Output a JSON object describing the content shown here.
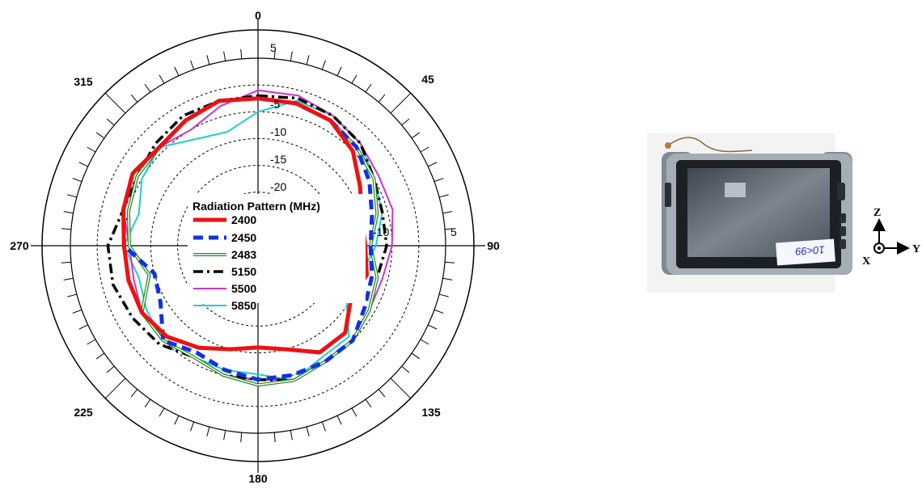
{
  "chart_data": {
    "type": "polar-line",
    "legend_title": "Radiation Pattern (MHz)",
    "legend_placement": "center",
    "r_range": [
      -25,
      10
    ],
    "r_ticks": [
      5,
      0,
      -5,
      -10,
      -15,
      -20
    ],
    "r_tick_labels": [
      "5",
      "-5",
      "-10",
      "-15",
      "-20"
    ],
    "right_axis_labels": [
      "-10",
      "5"
    ],
    "angle_labels": [
      "0",
      "45",
      "90",
      "135",
      "180",
      "225",
      "270",
      "315"
    ],
    "grid": true,
    "series": [
      {
        "name": "2400",
        "color": "#ee1111",
        "style": "solid-thick",
        "angles": [
          0,
          15,
          30,
          45,
          60,
          75,
          90,
          105,
          120,
          135,
          150,
          165,
          180,
          195,
          210,
          225,
          240,
          255,
          270,
          285,
          300,
          315,
          330,
          345
        ],
        "values": [
          2.5,
          2.5,
          2,
          0,
          -3,
          -5,
          -5,
          -4,
          -5,
          -2,
          -2,
          -5,
          -6,
          -5,
          -3,
          -1,
          0,
          0,
          0,
          1,
          2,
          1,
          2,
          3
        ]
      },
      {
        "name": "2450",
        "color": "#1133dd",
        "style": "dashed-thick",
        "angles": [
          0,
          15,
          30,
          45,
          60,
          75,
          90,
          105,
          120,
          135,
          150,
          165,
          180,
          195,
          210,
          225,
          240,
          255,
          270,
          285,
          300,
          315,
          330,
          345
        ],
        "values": [
          2.5,
          2.5,
          2,
          1,
          -1,
          -3,
          -4,
          -3,
          -2,
          0,
          0,
          0,
          0,
          -1,
          -2,
          0,
          -4,
          -5,
          0,
          1,
          2,
          1,
          2,
          3
        ]
      },
      {
        "name": "2483",
        "color": "#228822",
        "style": "double",
        "angles": [
          0,
          15,
          30,
          45,
          60,
          75,
          90,
          105,
          120,
          135,
          150,
          165,
          180,
          195,
          210,
          225,
          240,
          255,
          270,
          285,
          300,
          315,
          330,
          345
        ],
        "values": [
          2.5,
          2.5,
          2,
          1,
          0,
          -2,
          -4,
          -2,
          -1,
          0,
          0,
          1,
          1,
          0,
          -1,
          0,
          0,
          -4,
          -1,
          0,
          1,
          1,
          2,
          3
        ]
      },
      {
        "name": "5150",
        "color": "#000000",
        "style": "dashdot",
        "angles": [
          0,
          15,
          30,
          45,
          60,
          75,
          90,
          105,
          120,
          135,
          150,
          165,
          180,
          195,
          210,
          225,
          240,
          255,
          270,
          285,
          300,
          315,
          330,
          345
        ],
        "values": [
          3,
          3.5,
          3,
          2,
          0,
          -1,
          -1,
          -2,
          -1,
          0,
          0,
          1,
          0,
          0,
          -1,
          1,
          2,
          3,
          3,
          1,
          1,
          2,
          3,
          3
        ]
      },
      {
        "name": "5500",
        "color": "#cc33cc",
        "style": "solid",
        "angles": [
          0,
          15,
          30,
          45,
          60,
          75,
          90,
          105,
          120,
          135,
          150,
          165,
          180,
          195,
          210,
          225,
          240,
          255,
          270,
          285,
          300,
          315,
          330,
          345
        ],
        "values": [
          4,
          4,
          3,
          2,
          1,
          1,
          0,
          -1,
          -1,
          0,
          0,
          1,
          0,
          0,
          -1,
          0,
          0,
          -1,
          -1,
          1,
          1,
          1,
          0,
          2
        ]
      },
      {
        "name": "5850",
        "color": "#22cccc",
        "style": "solid",
        "angles": [
          0,
          15,
          30,
          45,
          60,
          75,
          90,
          105,
          120,
          135,
          150,
          165,
          180,
          195,
          210,
          225,
          240,
          255,
          270,
          285,
          300,
          315,
          330,
          345
        ],
        "values": [
          0,
          3,
          3,
          2,
          0,
          -1,
          -3,
          -5,
          -6,
          -1,
          -1,
          1,
          -1,
          -1,
          -1,
          0,
          -1,
          -2,
          0,
          -2,
          0,
          1,
          -2,
          -3
        ]
      }
    ]
  },
  "photo": {
    "label_text": "10<99",
    "axis_labels": [
      "Z",
      "X",
      "Y"
    ]
  }
}
